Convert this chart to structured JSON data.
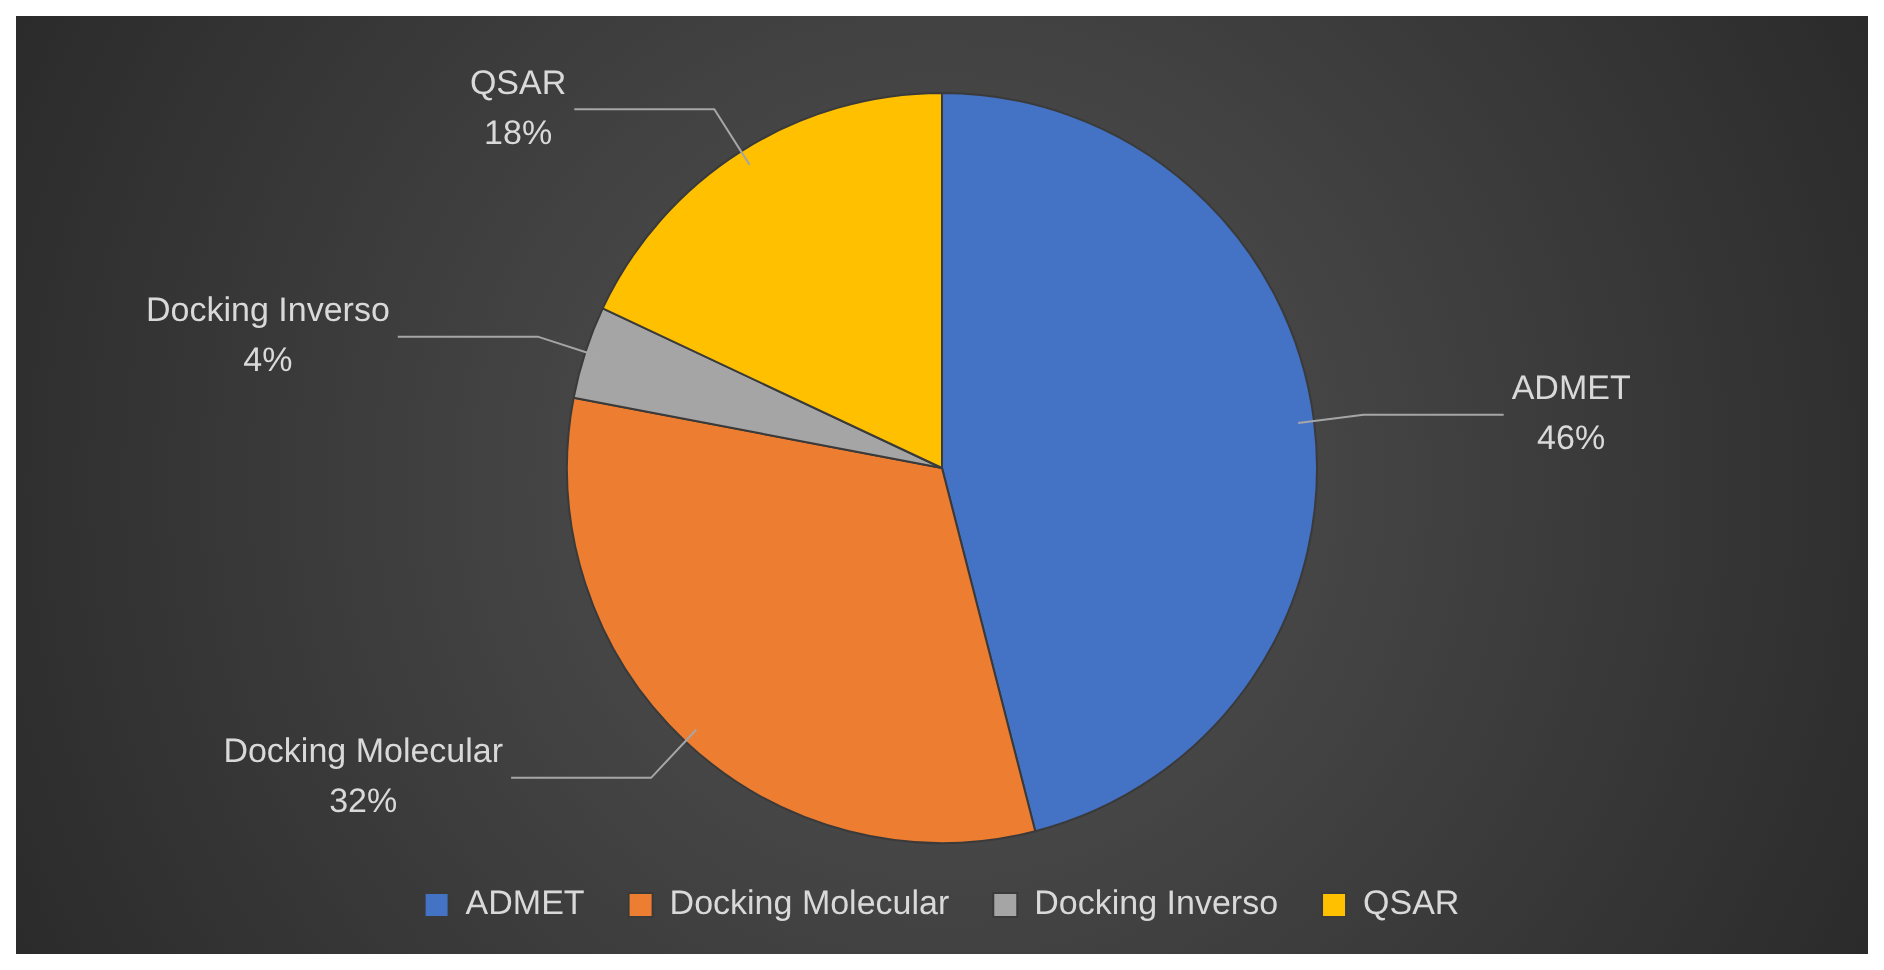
{
  "chart_data": {
    "type": "pie",
    "categories": [
      "ADMET",
      "Docking Molecular",
      "Docking Inverso",
      "QSAR"
    ],
    "values": [
      46,
      32,
      4,
      18
    ],
    "value_labels": [
      "46%",
      "32%",
      "4%",
      "18%"
    ],
    "colors": [
      "#4472c4",
      "#ed7d31",
      "#a5a5a5",
      "#ffc000"
    ],
    "legend": "bottom"
  }
}
